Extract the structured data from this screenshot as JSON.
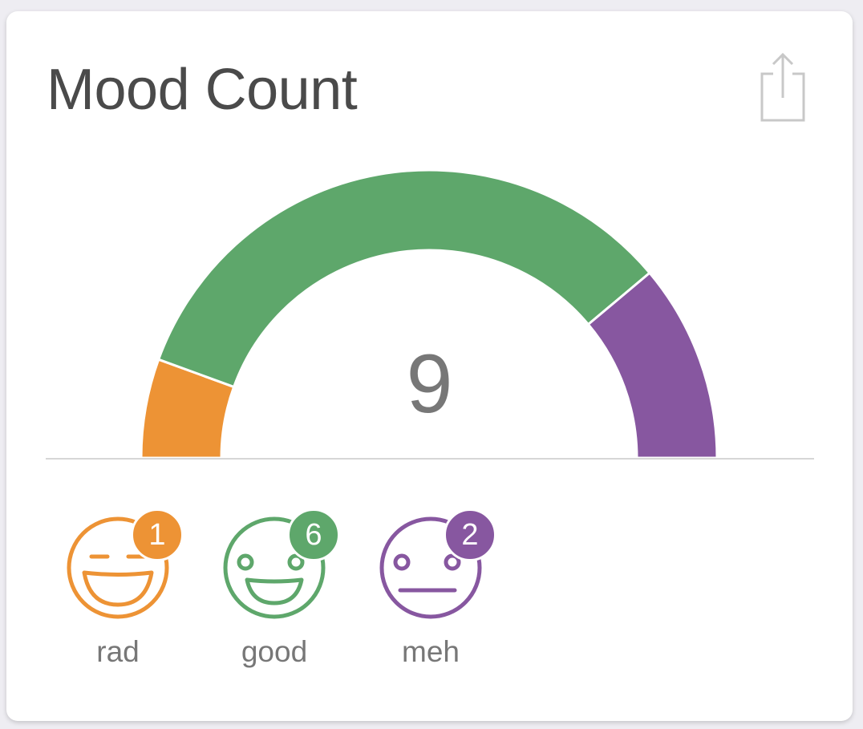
{
  "card": {
    "title": "Mood Count",
    "share_icon": "share-icon",
    "total": "9"
  },
  "colors": {
    "rad": "#ed9335",
    "good": "#5ea76b",
    "meh": "#8757a0",
    "baseline": "#d6d6d6",
    "title": "#4a4a4a"
  },
  "chart_data": {
    "type": "pie",
    "style": "half-donut",
    "categories": [
      "rad",
      "good",
      "meh"
    ],
    "values": [
      1,
      6,
      2
    ],
    "total": 9
  },
  "moods": [
    {
      "label": "rad",
      "count": "1",
      "icon": "rad-face-icon",
      "color": "#ed9335"
    },
    {
      "label": "good",
      "count": "6",
      "icon": "good-face-icon",
      "color": "#5ea76b"
    },
    {
      "label": "meh",
      "count": "2",
      "icon": "meh-face-icon",
      "color": "#8757a0"
    }
  ]
}
